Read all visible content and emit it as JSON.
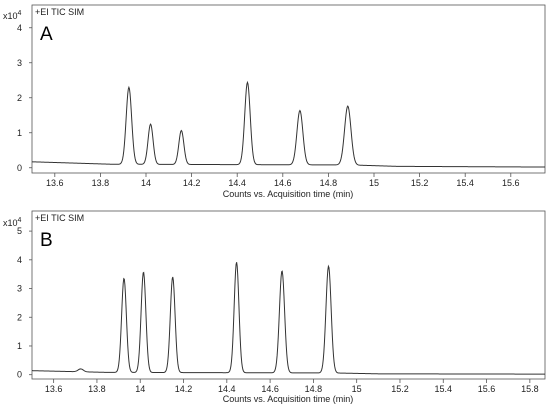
{
  "chart_data": [
    {
      "type": "line",
      "panel_label": "A",
      "trace_label": "+EI TIC SIM",
      "y_scale_label": "x10",
      "y_scale_exponent": "4",
      "xlabel": "Counts vs. Acquisition time (min)",
      "xlim": [
        13.5,
        15.75
      ],
      "ylim": [
        -0.15,
        4.65
      ],
      "x_ticks": [
        13.6,
        13.8,
        14,
        14.2,
        14.4,
        14.6,
        14.8,
        15,
        15.2,
        15.4,
        15.6
      ],
      "x_tick_labels": [
        "13.6",
        "13.8",
        "14",
        "14.2",
        "14.4",
        "14.6",
        "14.8",
        "15",
        "15.2",
        "15.4",
        "15.6"
      ],
      "y_ticks": [
        0,
        1,
        2,
        3,
        4
      ],
      "y_tick_labels": [
        "0",
        "1",
        "2",
        "3",
        "4"
      ],
      "grid": false,
      "baseline": [
        [
          13.5,
          0.17
        ],
        [
          13.85,
          0.1
        ],
        [
          14.9,
          0.08
        ],
        [
          15.1,
          0.04
        ],
        [
          15.75,
          0.02
        ]
      ],
      "peaks": [
        {
          "x": 13.925,
          "y": 2.2,
          "width": 0.012
        },
        {
          "x": 14.02,
          "y": 1.15,
          "width": 0.011
        },
        {
          "x": 14.155,
          "y": 0.97,
          "width": 0.011
        },
        {
          "x": 14.445,
          "y": 2.35,
          "width": 0.012
        },
        {
          "x": 14.675,
          "y": 1.55,
          "width": 0.013
        },
        {
          "x": 14.885,
          "y": 1.68,
          "width": 0.014
        }
      ]
    },
    {
      "type": "line",
      "panel_label": "B",
      "trace_label": "+EI TIC SIM",
      "y_scale_label": "x10",
      "y_scale_exponent": "4",
      "xlabel": "Counts vs. Acquisition time (min)",
      "xlim": [
        13.5,
        15.87
      ],
      "ylim": [
        -0.15,
        5.7
      ],
      "x_ticks": [
        13.6,
        13.8,
        14,
        14.2,
        14.4,
        14.6,
        14.8,
        15,
        15.2,
        15.4,
        15.6,
        15.8
      ],
      "x_tick_labels": [
        "13.6",
        "13.8",
        "14",
        "14.2",
        "14.4",
        "14.6",
        "14.8",
        "15",
        "15.2",
        "15.4",
        "15.6",
        "15.8"
      ],
      "y_ticks": [
        0,
        1,
        2,
        3,
        4,
        5
      ],
      "y_tick_labels": [
        "0",
        "1",
        "2",
        "3",
        "4",
        "5"
      ],
      "grid": false,
      "baseline": [
        [
          13.5,
          0.14
        ],
        [
          13.85,
          0.08
        ],
        [
          14.9,
          0.06
        ],
        [
          15.1,
          0.03
        ],
        [
          15.87,
          0.02
        ]
      ],
      "peaks": [
        {
          "x": 13.725,
          "y": 0.1,
          "width": 0.012
        },
        {
          "x": 13.925,
          "y": 3.28,
          "width": 0.011
        },
        {
          "x": 14.015,
          "y": 3.5,
          "width": 0.011
        },
        {
          "x": 14.15,
          "y": 3.33,
          "width": 0.011
        },
        {
          "x": 14.445,
          "y": 3.85,
          "width": 0.011
        },
        {
          "x": 14.655,
          "y": 3.55,
          "width": 0.012
        },
        {
          "x": 14.87,
          "y": 3.72,
          "width": 0.012
        }
      ]
    }
  ]
}
